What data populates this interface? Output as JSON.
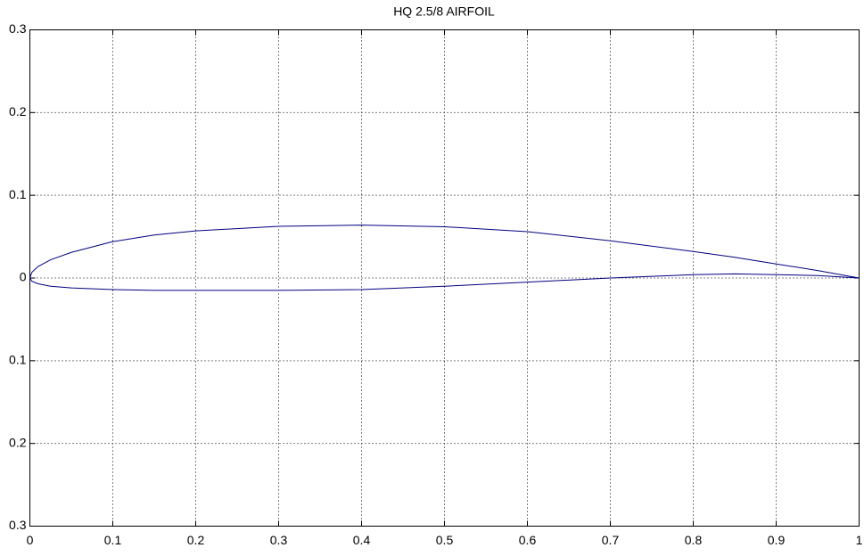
{
  "chart_data": {
    "type": "line",
    "title": "HQ 2.5/8 AIRFOIL",
    "x": [
      0,
      0.0025,
      0.01,
      0.025,
      0.05,
      0.1,
      0.15,
      0.2,
      0.3,
      0.4,
      0.5,
      0.6,
      0.7,
      0.8,
      0.85,
      0.9,
      0.95,
      1
    ],
    "series": [
      {
        "color": "#000080",
        "values": [
          0,
          0.007,
          0.014,
          0.022,
          0.031,
          0.044,
          0.052,
          0.057,
          0.0625,
          0.064,
          0.062,
          0.056,
          0.045,
          0.032,
          0.025,
          0.017,
          0.009,
          0
        ]
      },
      {
        "color": "#000080",
        "values": [
          0,
          -0.004,
          -0.007,
          -0.01,
          -0.012,
          -0.014,
          -0.015,
          -0.015,
          -0.015,
          -0.014,
          -0.01,
          -0.005,
          0.0,
          0.004,
          0.005,
          0.004,
          0.003,
          0
        ]
      }
    ],
    "xlim": [
      0,
      1
    ],
    "ylim": [
      -0.3,
      0.3
    ],
    "xticks": [
      0,
      0.1,
      0.2,
      0.3,
      0.4,
      0.5,
      0.6,
      0.7,
      0.8,
      0.9,
      1
    ],
    "yticks": [
      {
        "value": -0.3,
        "label": "0.3"
      },
      {
        "value": -0.2,
        "label": "0.2"
      },
      {
        "value": -0.1,
        "label": "0.1"
      },
      0,
      0.1,
      0.2,
      0.3
    ],
    "grid": true
  }
}
